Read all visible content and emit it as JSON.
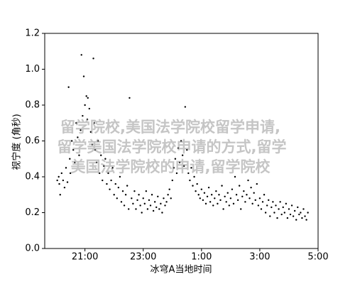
{
  "chart_data": {
    "type": "scatter",
    "x_label": "冰穹A当地时间",
    "y_label": "视宁度 (角秒)",
    "watermark": [
      "留学院校,美国法学院校留学申请,",
      "留学美国法学院校申请的方式,留学",
      "美国法学院校的申请,留学院校"
    ],
    "color": "#000000",
    "xlim": [
      19.62,
      29
    ],
    "xticks": [
      {
        "value": 21,
        "label": "21:00"
      },
      {
        "value": 23,
        "label": "23:00"
      },
      {
        "value": 25,
        "label": "1:00"
      },
      {
        "value": 27,
        "label": "3:00"
      },
      {
        "value": 29,
        "label": "5:00"
      }
    ],
    "ylim": [
      0,
      1.2
    ],
    "yticks": [
      {
        "value": 0,
        "label": "0.0"
      },
      0.2,
      0.4,
      0.6,
      0.8,
      {
        "value": 1,
        "label": "1.0"
      },
      1.2
    ],
    "x": [
      20.05,
      20.1,
      20.12,
      20.15,
      20.2,
      20.25,
      20.3,
      20.35,
      20.4,
      20.44,
      20.48,
      20.5,
      20.55,
      20.6,
      20.65,
      20.7,
      20.75,
      20.8,
      20.85,
      20.88,
      20.92,
      20.96,
      21.0,
      21.05,
      21.08,
      21.1,
      21.15,
      21.2,
      21.25,
      21.29,
      21.32,
      21.35,
      21.4,
      21.45,
      21.5,
      21.55,
      21.6,
      21.65,
      21.7,
      21.75,
      21.8,
      21.85,
      21.9,
      21.95,
      22.0,
      22.05,
      22.1,
      22.15,
      22.2,
      22.25,
      22.3,
      22.35,
      22.4,
      22.45,
      22.5,
      22.53,
      22.6,
      22.65,
      22.7,
      22.75,
      22.8,
      22.85,
      22.9,
      22.95,
      23.0,
      23.05,
      23.1,
      23.15,
      23.2,
      23.25,
      23.3,
      23.35,
      23.4,
      23.45,
      23.5,
      23.55,
      23.6,
      23.65,
      23.7,
      23.75,
      23.8,
      23.85,
      23.9,
      23.95,
      24.0,
      24.05,
      24.1,
      24.15,
      24.2,
      24.25,
      24.3,
      24.35,
      24.4,
      24.44,
      24.5,
      24.55,
      24.6,
      24.65,
      24.7,
      24.75,
      24.8,
      24.85,
      24.9,
      24.95,
      25.0,
      25.05,
      25.1,
      25.15,
      25.2,
      25.25,
      25.3,
      25.35,
      25.4,
      25.45,
      25.5,
      25.55,
      25.6,
      25.65,
      25.7,
      25.75,
      25.8,
      25.85,
      25.9,
      25.95,
      26.0,
      26.05,
      26.1,
      26.15,
      26.2,
      26.25,
      26.3,
      26.35,
      26.4,
      26.45,
      26.5,
      26.55,
      26.6,
      26.65,
      26.7,
      26.75,
      26.8,
      26.85,
      26.9,
      26.95,
      27.0,
      27.05,
      27.1,
      27.15,
      27.2,
      27.25,
      27.3,
      27.35,
      27.4,
      27.45,
      27.5,
      27.55,
      27.6,
      27.65,
      27.7,
      27.75,
      27.8,
      27.85,
      27.9,
      27.95,
      28.0,
      28.05,
      28.1,
      28.15,
      28.2,
      28.25,
      28.3,
      28.35,
      28.4,
      28.45,
      28.5,
      28.55,
      28.6,
      28.65
    ],
    "y": [
      0.38,
      0.4,
      0.36,
      0.3,
      0.42,
      0.38,
      0.34,
      0.45,
      0.37,
      0.9,
      0.5,
      0.42,
      0.6,
      0.55,
      0.48,
      0.7,
      0.62,
      0.52,
      0.66,
      1.08,
      0.74,
      0.96,
      0.8,
      0.85,
      0.72,
      0.84,
      0.78,
      0.65,
      0.58,
      1.06,
      0.7,
      0.55,
      0.48,
      0.6,
      0.42,
      0.52,
      0.38,
      0.46,
      0.5,
      0.36,
      0.42,
      0.33,
      0.38,
      0.45,
      0.3,
      0.36,
      0.28,
      0.34,
      0.4,
      0.26,
      0.32,
      0.24,
      0.3,
      0.35,
      0.22,
      0.84,
      0.28,
      0.25,
      0.32,
      0.22,
      0.27,
      0.3,
      0.24,
      0.2,
      0.28,
      0.25,
      0.32,
      0.22,
      0.27,
      0.24,
      0.3,
      0.21,
      0.26,
      0.23,
      0.29,
      0.22,
      0.25,
      0.2,
      0.28,
      0.24,
      0.26,
      0.3,
      0.33,
      0.28,
      0.38,
      0.45,
      0.5,
      0.42,
      0.56,
      0.48,
      0.6,
      0.52,
      0.46,
      0.79,
      0.55,
      0.42,
      0.38,
      0.45,
      0.35,
      0.4,
      0.32,
      0.36,
      0.3,
      0.28,
      0.33,
      0.27,
      0.31,
      0.25,
      0.29,
      0.34,
      0.26,
      0.3,
      0.24,
      0.28,
      0.32,
      0.25,
      0.3,
      0.27,
      0.35,
      0.22,
      0.29,
      0.26,
      0.31,
      0.24,
      0.28,
      0.33,
      0.25,
      0.4,
      0.3,
      0.27,
      0.35,
      0.22,
      0.29,
      0.32,
      0.26,
      0.3,
      0.38,
      0.28,
      0.34,
      0.25,
      0.31,
      0.27,
      0.36,
      0.24,
      0.28,
      0.22,
      0.26,
      0.3,
      0.2,
      0.24,
      0.27,
      0.18,
      0.23,
      0.26,
      0.2,
      0.24,
      0.17,
      0.22,
      0.26,
      0.19,
      0.23,
      0.2,
      0.25,
      0.17,
      0.22,
      0.19,
      0.24,
      0.18,
      0.21,
      0.16,
      0.23,
      0.19,
      0.2,
      0.17,
      0.22,
      0.18,
      0.16,
      0.2
    ]
  }
}
